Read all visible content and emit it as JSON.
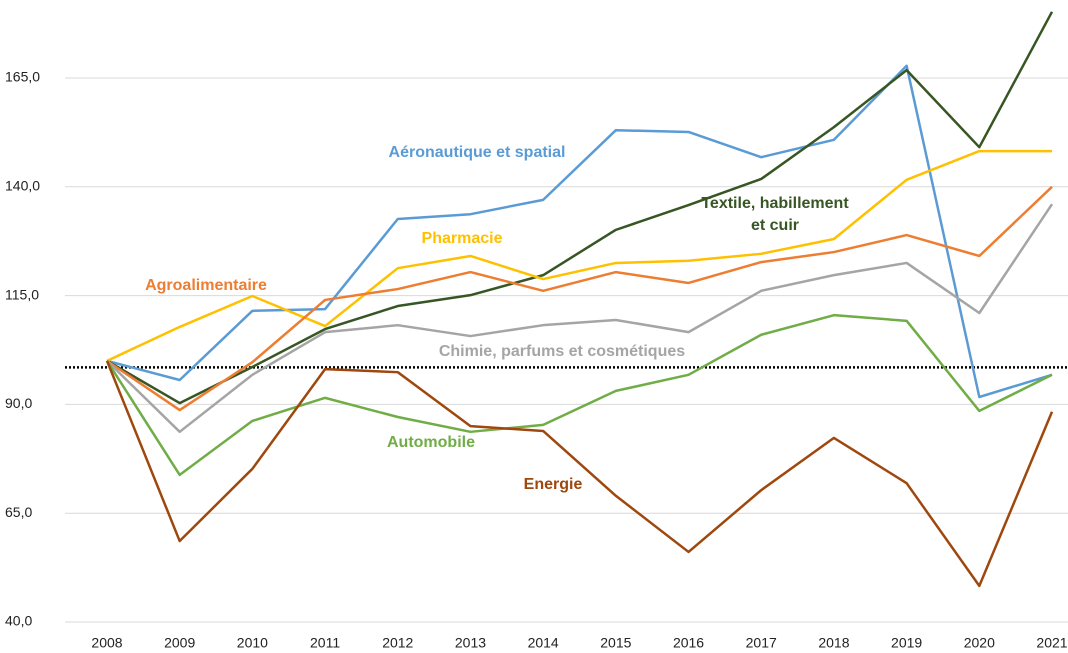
{
  "chart_data": {
    "type": "line",
    "categories": [
      "2008",
      "2009",
      "2010",
      "2011",
      "2012",
      "2013",
      "2014",
      "2015",
      "2016",
      "2017",
      "2018",
      "2019",
      "2020",
      "2021"
    ],
    "ylim": [
      40,
      180
    ],
    "yticks": [
      {
        "value": 40,
        "label": "40,0"
      },
      {
        "value": 65,
        "label": "65,0"
      },
      {
        "value": 90,
        "label": "90,0"
      },
      {
        "value": 115,
        "label": "115,0"
      },
      {
        "value": 140,
        "label": "140,0"
      },
      {
        "value": 165,
        "label": "165,0"
      }
    ],
    "grid": true,
    "reference_line": 98.5,
    "series": [
      {
        "name": "Aéronautique et spatial",
        "color": "#5b9bd5",
        "values": [
          100,
          95.6,
          111.5,
          111.9,
          132.6,
          133.7,
          137,
          153,
          152.6,
          146.8,
          150.8,
          167.8,
          91.7,
          96.8
        ]
      },
      {
        "name": "Textile, habillement et cuir",
        "color": "#375623",
        "values": [
          100,
          90.3,
          98.6,
          107.3,
          112.6,
          115.1,
          119.7,
          130.1,
          135.8,
          141.8,
          153.7,
          166.8,
          149.1,
          180.2
        ]
      },
      {
        "name": "Pharmacie",
        "color": "#ffc000",
        "values": [
          100,
          107.8,
          114.9,
          108,
          121.3,
          124.1,
          118.8,
          122.5,
          123,
          124.6,
          128,
          141.6,
          148.2,
          148.2
        ]
      },
      {
        "name": "Agroalimentaire",
        "color": "#ed7d31",
        "values": [
          100,
          88.7,
          99.7,
          114,
          116.5,
          120.4,
          116.1,
          120.4,
          117.9,
          122.7,
          125,
          128.9,
          124.1,
          140
        ]
      },
      {
        "name": "Chimie, parfums et cosmétiques",
        "color": "#a5a5a5",
        "values": [
          100,
          83.7,
          96.8,
          106.6,
          108.2,
          105.7,
          108.2,
          109.4,
          106.6,
          116.1,
          119.7,
          122.5,
          111,
          136
        ]
      },
      {
        "name": "Automobile",
        "color": "#70ad47",
        "values": [
          100,
          73.8,
          86.2,
          91.5,
          87.1,
          83.7,
          85.3,
          93.1,
          96.8,
          106,
          110.5,
          109.2,
          88.5,
          96.8
        ]
      },
      {
        "name": "Energie",
        "color": "#9e480e",
        "values": [
          100,
          58.6,
          75.2,
          98.1,
          97.4,
          85,
          83.9,
          69,
          56.1,
          70.3,
          82.3,
          71.9,
          48.3,
          88.3
        ]
      }
    ]
  }
}
